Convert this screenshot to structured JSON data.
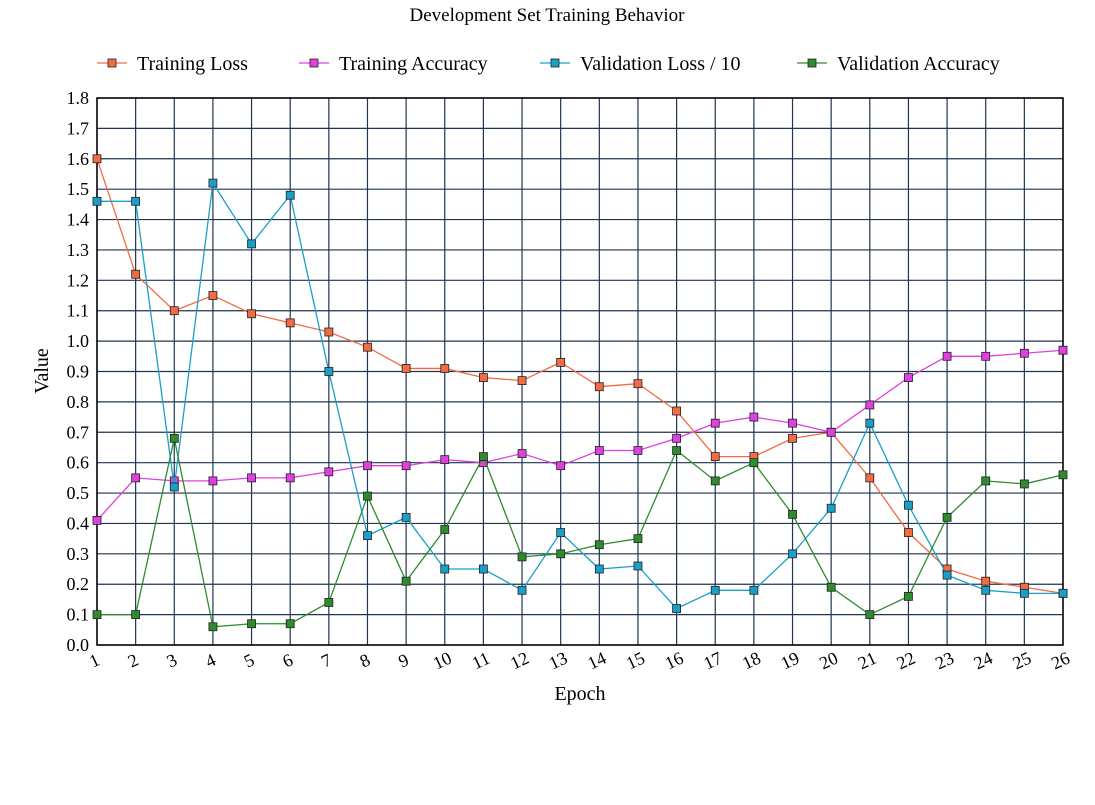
{
  "chart_data": {
    "type": "line",
    "title": "Development Set Training Behavior",
    "xlabel": "Epoch",
    "ylabel": "Value",
    "x": [
      1,
      2,
      3,
      4,
      5,
      6,
      7,
      8,
      9,
      10,
      11,
      12,
      13,
      14,
      15,
      16,
      17,
      18,
      19,
      20,
      21,
      22,
      23,
      24,
      25,
      26
    ],
    "xlim": [
      1,
      26
    ],
    "ylim": [
      0.0,
      1.8
    ],
    "y_ticks": [
      "0.0",
      "0.1",
      "0.2",
      "0.3",
      "0.4",
      "0.5",
      "0.6",
      "0.7",
      "0.8",
      "0.9",
      "1.0",
      "1.1",
      "1.2",
      "1.3",
      "1.4",
      "1.5",
      "1.6",
      "1.7",
      "1.8"
    ],
    "x_ticks": [
      "1",
      "2",
      "3",
      "4",
      "5",
      "6",
      "7",
      "8",
      "9",
      "10",
      "11",
      "12",
      "13",
      "14",
      "15",
      "16",
      "17",
      "18",
      "19",
      "20",
      "21",
      "22",
      "23",
      "24",
      "25",
      "26"
    ],
    "grid": true,
    "legend_position": "top",
    "series": [
      {
        "name": "Training Loss",
        "color": "#f26b43",
        "marker_fill": "#f26b43",
        "values": [
          1.6,
          1.22,
          1.1,
          1.15,
          1.09,
          1.06,
          1.03,
          0.98,
          0.91,
          0.91,
          0.88,
          0.87,
          0.93,
          0.85,
          0.86,
          0.77,
          0.62,
          0.62,
          0.68,
          0.7,
          0.55,
          0.37,
          0.25,
          0.21,
          0.19,
          0.17
        ]
      },
      {
        "name": "Training Accuracy",
        "color": "#e040e0",
        "marker_fill": "#e040e0",
        "values": [
          0.41,
          0.55,
          0.54,
          0.54,
          0.55,
          0.55,
          0.57,
          0.59,
          0.59,
          0.61,
          0.6,
          0.63,
          0.59,
          0.64,
          0.64,
          0.68,
          0.73,
          0.75,
          0.73,
          0.7,
          0.79,
          0.88,
          0.95,
          0.95,
          0.96,
          0.97
        ]
      },
      {
        "name": "Validation Loss / 10",
        "color": "#1a9fc9",
        "marker_fill": "#1a9fc9",
        "values": [
          1.46,
          1.46,
          0.52,
          1.52,
          1.32,
          1.48,
          0.9,
          0.36,
          0.42,
          0.25,
          0.25,
          0.18,
          0.37,
          0.25,
          0.26,
          0.12,
          0.18,
          0.18,
          0.3,
          0.45,
          0.73,
          0.46,
          0.23,
          0.18,
          0.17,
          0.17
        ]
      },
      {
        "name": "Validation Accuracy",
        "color": "#2e8b2e",
        "marker_fill": "#2e8b2e",
        "values": [
          0.1,
          0.1,
          0.68,
          0.06,
          0.07,
          0.07,
          0.14,
          0.49,
          0.21,
          0.38,
          0.62,
          0.29,
          0.3,
          0.33,
          0.35,
          0.64,
          0.54,
          0.6,
          0.43,
          0.19,
          0.1,
          0.16,
          0.42,
          0.54,
          0.53,
          0.56
        ]
      }
    ]
  }
}
